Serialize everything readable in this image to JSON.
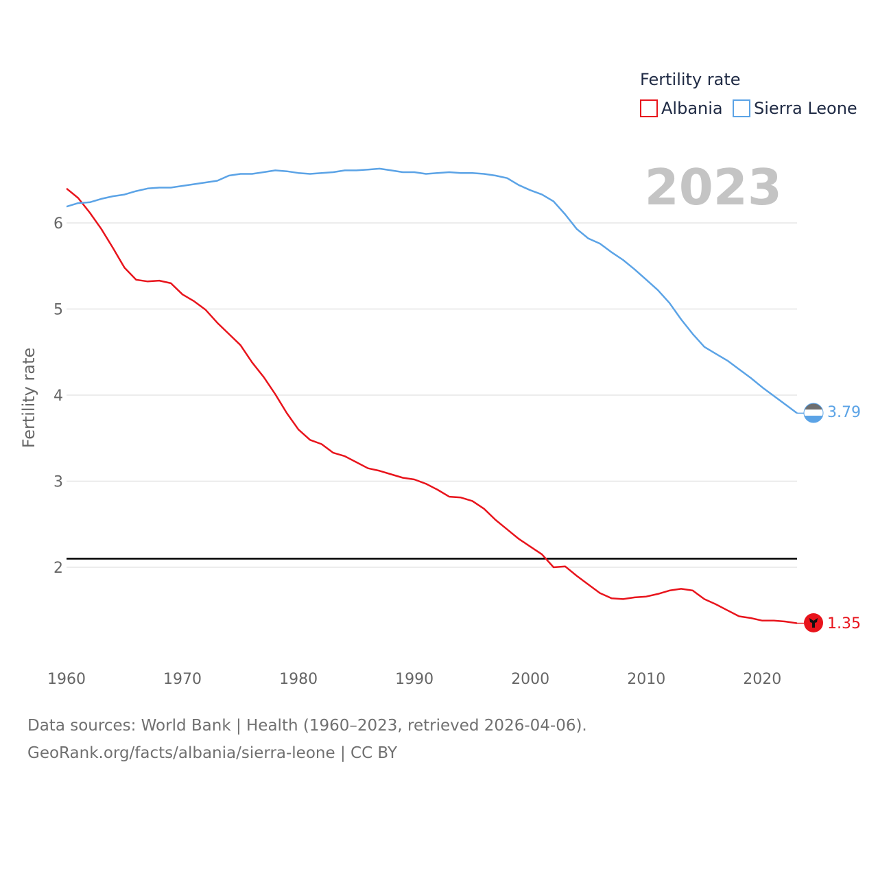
{
  "chart_data": {
    "type": "line",
    "title": "",
    "ylabel": "Fertility rate",
    "xlabel": "",
    "ylim": [
      0.85,
      7.0
    ],
    "xlim": [
      1960,
      2023
    ],
    "yticks": [
      2,
      3,
      4,
      5,
      6
    ],
    "xticks": [
      1960,
      1970,
      1980,
      1990,
      2000,
      2010,
      2020
    ],
    "grid": true,
    "reference_line": 2.1,
    "year_label": "2023",
    "legend": {
      "title": "Fertility rate",
      "placement": "top-right"
    },
    "series": [
      {
        "name": "Albania",
        "color": "#e8141c",
        "end_value_label": "1.35",
        "flag_icon": "albania-flag-icon",
        "x": [
          1960,
          1961,
          1962,
          1963,
          1964,
          1965,
          1966,
          1967,
          1968,
          1969,
          1970,
          1971,
          1972,
          1973,
          1974,
          1975,
          1976,
          1977,
          1978,
          1979,
          1980,
          1981,
          1982,
          1983,
          1984,
          1985,
          1986,
          1987,
          1988,
          1989,
          1990,
          1991,
          1992,
          1993,
          1994,
          1995,
          1996,
          1997,
          1998,
          1999,
          2000,
          2001,
          2002,
          2003,
          2004,
          2005,
          2006,
          2007,
          2008,
          2009,
          2010,
          2011,
          2012,
          2013,
          2014,
          2015,
          2016,
          2017,
          2018,
          2019,
          2020,
          2021,
          2022,
          2023
        ],
        "values": [
          6.4,
          6.29,
          6.12,
          5.93,
          5.71,
          5.48,
          5.34,
          5.32,
          5.33,
          5.3,
          5.17,
          5.09,
          4.99,
          4.84,
          4.71,
          4.58,
          4.38,
          4.21,
          4.01,
          3.79,
          3.6,
          3.48,
          3.43,
          3.33,
          3.29,
          3.22,
          3.15,
          3.12,
          3.08,
          3.04,
          3.02,
          2.97,
          2.9,
          2.82,
          2.81,
          2.77,
          2.68,
          2.55,
          2.44,
          2.33,
          2.24,
          2.15,
          2.0,
          2.01,
          1.9,
          1.8,
          1.7,
          1.64,
          1.63,
          1.65,
          1.66,
          1.69,
          1.73,
          1.75,
          1.73,
          1.63,
          1.57,
          1.5,
          1.43,
          1.41,
          1.38,
          1.38,
          1.37,
          1.35
        ]
      },
      {
        "name": "Sierra Leone",
        "color": "#5ba3e6",
        "end_value_label": "3.79",
        "flag_icon": "sierra-leone-flag-icon",
        "x": [
          1960,
          1961,
          1962,
          1963,
          1964,
          1965,
          1966,
          1967,
          1968,
          1969,
          1970,
          1971,
          1972,
          1973,
          1974,
          1975,
          1976,
          1977,
          1978,
          1979,
          1980,
          1981,
          1982,
          1983,
          1984,
          1985,
          1986,
          1987,
          1988,
          1989,
          1990,
          1991,
          1992,
          1993,
          1994,
          1995,
          1996,
          1997,
          1998,
          1999,
          2000,
          2001,
          2002,
          2003,
          2004,
          2005,
          2006,
          2007,
          2008,
          2009,
          2010,
          2011,
          2012,
          2013,
          2014,
          2015,
          2016,
          2017,
          2018,
          2019,
          2020,
          2021,
          2022,
          2023
        ],
        "values": [
          6.19,
          6.23,
          6.24,
          6.28,
          6.31,
          6.33,
          6.37,
          6.4,
          6.41,
          6.41,
          6.43,
          6.45,
          6.47,
          6.49,
          6.55,
          6.57,
          6.57,
          6.59,
          6.61,
          6.6,
          6.58,
          6.57,
          6.58,
          6.59,
          6.61,
          6.61,
          6.62,
          6.63,
          6.61,
          6.59,
          6.59,
          6.57,
          6.58,
          6.59,
          6.58,
          6.58,
          6.57,
          6.55,
          6.52,
          6.44,
          6.38,
          6.33,
          6.25,
          6.1,
          5.93,
          5.82,
          5.76,
          5.66,
          5.57,
          5.46,
          5.34,
          5.22,
          5.07,
          4.88,
          4.71,
          4.56,
          4.48,
          4.4,
          4.3,
          4.2,
          4.09,
          3.99,
          3.89,
          3.79
        ]
      }
    ]
  },
  "footer": {
    "line1": "Data sources: World Bank | Health (1960–2023, retrieved 2026-04-06).",
    "line2": "GeoRank.org/facts/albania/sierra-leone | CC BY"
  }
}
